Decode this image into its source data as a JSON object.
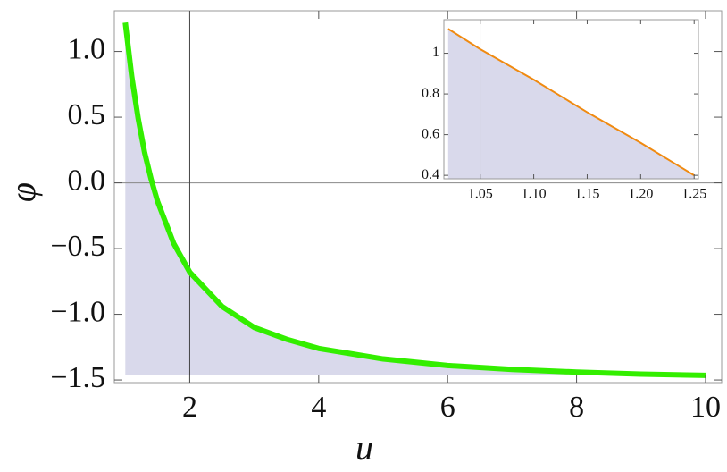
{
  "chart_data": [
    {
      "type": "line",
      "x_label": "u",
      "y_label": "φ",
      "x": [
        1,
        1.1,
        1.2,
        1.3,
        1.4,
        1.5,
        1.75,
        2,
        2.5,
        3,
        3.5,
        4,
        5,
        6,
        7,
        8,
        9,
        10
      ],
      "series": [
        {
          "color": "#33ee00",
          "values": [
            1.22,
            0.81,
            0.49,
            0.23,
            0.03,
            -0.14,
            -0.46,
            -0.68,
            -0.94,
            -1.1,
            -1.19,
            -1.26,
            -1.34,
            -1.39,
            -1.42,
            -1.44,
            -1.455,
            -1.465
          ]
        }
      ],
      "fill_color": "#d9d9eb",
      "fill_base": -1.465,
      "vline": 2,
      "xlim": [
        0.83,
        10.25
      ],
      "ylim": [
        -1.52,
        1.31
      ],
      "xticks": [
        2,
        4,
        6,
        8,
        10
      ],
      "yticks": [
        {
          "value": 1,
          "label": "1.0"
        },
        0.5,
        {
          "value": 0,
          "label": "0.0"
        },
        {
          "value": -0.5,
          "label": "−0.5"
        },
        {
          "value": -1,
          "label": "−1.0"
        },
        {
          "value": -1.5,
          "label": "−1.5"
        }
      ]
    },
    {
      "type": "line",
      "x": [
        1.02,
        1.05,
        1.1,
        1.15,
        1.2,
        1.25
      ],
      "series": [
        {
          "color": "#f08a10",
          "values": [
            1.12,
            1.02,
            0.87,
            0.71,
            0.56,
            0.4
          ]
        }
      ],
      "fill_color": "#d9d9eb",
      "fill_base": 0.383,
      "vline": 1.05,
      "xlim": [
        1.016,
        1.254
      ],
      "ylim": [
        0.383,
        1.165
      ],
      "xticks": [
        1.05,
        {
          "value": 1.1,
          "label": "1.10"
        },
        1.15,
        {
          "value": 1.2,
          "label": "1.20"
        },
        1.25
      ],
      "yticks": [
        1,
        0.8,
        0.6,
        0.4
      ]
    }
  ]
}
